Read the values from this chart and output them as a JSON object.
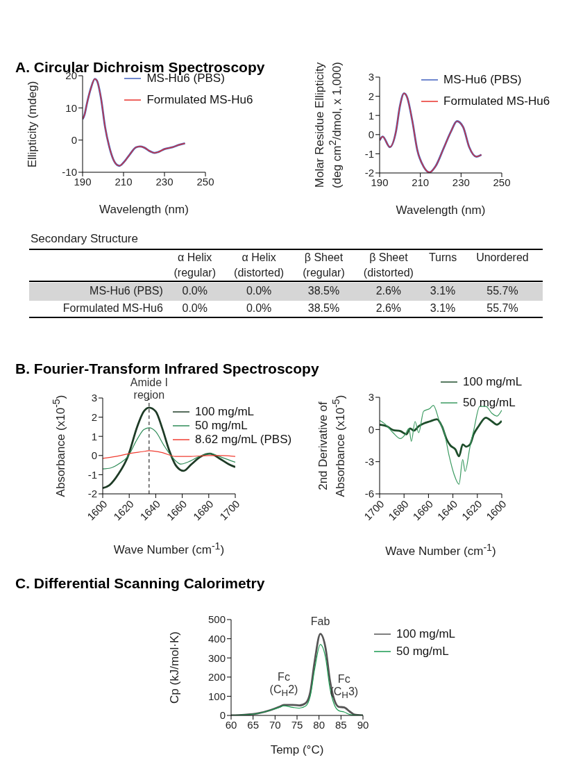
{
  "chart_data": [
    {
      "type": "line",
      "title": "A. Circular Dichroism Spectroscopy",
      "xlabel": "Wavelength (nm)",
      "ylabel": "Ellipticity (mdeg)",
      "xlim": [
        190,
        250
      ],
      "xticks": [
        190,
        210,
        230,
        250
      ],
      "ylim": [
        -10,
        20
      ],
      "yticks": [
        -10,
        0,
        10,
        20
      ],
      "legend": "top right",
      "series": [
        {
          "name": "MS-Hu6 (PBS)",
          "color": "#3f5fbf",
          "x": [
            190,
            191,
            192,
            194,
            196,
            197,
            199,
            201,
            203,
            205,
            207,
            208,
            210,
            213,
            216,
            218,
            220,
            223,
            225,
            227,
            230,
            234,
            237,
            240
          ],
          "values": [
            6.5,
            8,
            11,
            16,
            19,
            18.5,
            13,
            4,
            -2,
            -6,
            -7.8,
            -8,
            -7,
            -4.5,
            -2.3,
            -2,
            -2.3,
            -3.5,
            -4,
            -3.7,
            -2.8,
            -2.2,
            -1.5,
            -1
          ]
        },
        {
          "name": "Formulated MS-Hu6",
          "color": "#e8302a",
          "x": [
            190,
            191,
            192,
            194,
            196,
            197,
            199,
            201,
            203,
            205,
            207,
            208,
            210,
            213,
            216,
            218,
            220,
            223,
            225,
            227,
            230,
            234,
            237,
            240
          ],
          "values": [
            6.5,
            8,
            11,
            16,
            19,
            18.5,
            13,
            4,
            -2,
            -6,
            -7.8,
            -8,
            -7,
            -4.5,
            -2.3,
            -2,
            -2.3,
            -3.5,
            -4,
            -3.7,
            -2.8,
            -2.2,
            -1.5,
            -1
          ]
        }
      ]
    },
    {
      "type": "line",
      "xlabel": "Wavelength (nm)",
      "ylabel": "Molar Residue Ellipticity\n(deg cm$^{2}$/dmol, x 1,000)",
      "xlim": [
        190,
        250
      ],
      "xticks": [
        190,
        210,
        230,
        250
      ],
      "ylim": [
        -2,
        3
      ],
      "yticks": [
        -2,
        -1,
        0,
        1,
        2,
        3
      ],
      "legend": "top right",
      "series": [
        {
          "name": "MS-Hu6 (PBS)",
          "color": "#3f5fbf",
          "x": [
            190,
            191.5,
            195,
            198,
            200,
            202,
            203.5,
            206,
            208.5,
            211.5,
            214.5,
            217.5,
            221.5,
            225,
            228,
            231,
            234,
            237.5,
            240
          ],
          "values": [
            -0.3,
            -0.1,
            -0.65,
            0.15,
            1.5,
            2.15,
            1.95,
            0.75,
            -0.8,
            -1.65,
            -1.97,
            -1.65,
            -0.7,
            0.15,
            0.7,
            0.4,
            -0.65,
            -1.15,
            -1.05
          ]
        },
        {
          "name": "Formulated MS-Hu6",
          "color": "#e8302a",
          "x": [
            190,
            191.5,
            195,
            198,
            200,
            202,
            203.5,
            206,
            208.5,
            211.5,
            214.5,
            217.5,
            221.5,
            225,
            228,
            231,
            234,
            237.5,
            240
          ],
          "values": [
            -0.3,
            -0.1,
            -0.65,
            0.15,
            1.5,
            2.15,
            1.95,
            0.75,
            -0.8,
            -1.65,
            -1.97,
            -1.65,
            -0.7,
            0.15,
            0.7,
            0.4,
            -0.65,
            -1.15,
            -1.05
          ]
        }
      ]
    },
    {
      "type": "other",
      "title": "Secondary Structure",
      "categories": [
        "α Helix\n(regular)",
        "α Helix\n(distorted)",
        "β Sheet\n(regular)",
        "β Sheet\n(distorted)",
        "Turns",
        "Unordered"
      ],
      "y_categories": [
        "MS-Hu6 (PBS)",
        "Formulated MS-Hu6"
      ],
      "cell_labels": [
        [
          "0.0%",
          "0.0%",
          "38.5%",
          "2.6%",
          "3.1%",
          "55.7%"
        ],
        [
          "0.0%",
          "0.0%",
          "38.5%",
          "2.6%",
          "3.1%",
          "55.7%"
        ]
      ]
    },
    {
      "type": "line",
      "title": "B. Fourier-Transform Infrared Spectroscopy",
      "xlabel": "Wave Number (cm$^{-1}$)",
      "ylabel": "Absorbance (x10$^{-5}$)",
      "xlim": [
        1600,
        1700
      ],
      "xticks": [
        1600,
        1620,
        1640,
        1660,
        1680,
        1700
      ],
      "ylim": [
        -2,
        3
      ],
      "yticks": [
        -2,
        -1,
        0,
        1,
        2,
        3
      ],
      "legend": "top right",
      "ref_lines": [
        {
          "axis": "x",
          "value": 1635,
          "color": "#000000",
          "line_style": "dashed"
        }
      ],
      "annotations": [
        {
          "text": "Amide I\nregion",
          "x": 1635,
          "y": 2.5
        }
      ],
      "series": [
        {
          "name": "100 mg/mL",
          "color": "#1e3b26",
          "x": [
            1600,
            1605,
            1612,
            1619,
            1626,
            1631,
            1635,
            1640,
            1645,
            1650,
            1655,
            1661,
            1667,
            1674,
            1681,
            1688,
            1695,
            1700
          ],
          "values": [
            -1.7,
            -1.55,
            -0.95,
            -0.05,
            1.5,
            2.3,
            2.5,
            2.3,
            1.4,
            0.3,
            -0.5,
            -0.8,
            -0.45,
            -0.05,
            0.1,
            -0.15,
            -0.45,
            -0.6
          ]
        },
        {
          "name": "50 mg/mL",
          "color": "#2e8b57",
          "x": [
            1600,
            1606,
            1613,
            1619,
            1626,
            1631,
            1635,
            1640,
            1646,
            1652,
            1659,
            1664,
            1673,
            1681,
            1690,
            1700
          ],
          "values": [
            -0.7,
            -0.65,
            -0.4,
            -0.05,
            0.85,
            1.35,
            1.45,
            1.25,
            0.55,
            -0.05,
            -0.45,
            -0.35,
            -0.05,
            0.1,
            -0.1,
            -0.35
          ]
        },
        {
          "name": "8.62 mg/mL (PBS)",
          "color": "#f03c30",
          "x": [
            1600,
            1610,
            1620,
            1630,
            1635,
            1645,
            1655,
            1665,
            1680,
            1690,
            1700
          ],
          "values": [
            -0.15,
            -0.05,
            0.1,
            0.2,
            0.25,
            0.15,
            -0.05,
            -0.05,
            0,
            0,
            -0.05
          ]
        }
      ]
    },
    {
      "type": "line",
      "xlabel": "Wave Number (cm$^{-1}$)",
      "ylabel": "2nd Derivative of\nAbsorbance (x10$^{-5}$)",
      "xlim": [
        1700,
        1600
      ],
      "xticks": [
        1700,
        1680,
        1660,
        1640,
        1620,
        1600
      ],
      "ylim": [
        -6,
        3
      ],
      "yticks": [
        -6,
        -3,
        0,
        3
      ],
      "legend": "top right",
      "series": [
        {
          "name": "100 mg/mL",
          "color": "#1e4d2b",
          "x": [
            1700,
            1694,
            1689,
            1683,
            1678,
            1675,
            1672,
            1668,
            1664,
            1659,
            1653,
            1649,
            1645,
            1642,
            1638,
            1635,
            1632,
            1629,
            1626,
            1623,
            1619,
            1613,
            1608,
            1604,
            1600
          ],
          "values": [
            0.45,
            0.3,
            -0.05,
            -0.15,
            -0.45,
            0.1,
            -0.1,
            0.3,
            0.55,
            0.75,
            0.95,
            0.3,
            -0.95,
            -1.5,
            -1.85,
            -2.5,
            -1.4,
            -1.6,
            -1.4,
            -0.45,
            0.3,
            1.1,
            0.75,
            0.45,
            0.8
          ]
        },
        {
          "name": "50 mg/mL",
          "color": "#3a9a60",
          "x": [
            1700,
            1696,
            1693,
            1689,
            1683,
            1679,
            1676,
            1674,
            1671,
            1668,
            1664,
            1659,
            1656,
            1651,
            1647,
            1643,
            1639,
            1635,
            1632,
            1630,
            1626,
            1623,
            1618,
            1613,
            1608,
            1604,
            1600
          ],
          "values": [
            0.85,
            0.55,
            0.2,
            -0.3,
            -0.85,
            -0.45,
            0.1,
            -1.1,
            0.75,
            -0.3,
            1.7,
            1.95,
            2.25,
            0.75,
            -0.3,
            -2.5,
            -4.2,
            -5.1,
            -2.8,
            -3.9,
            -1.6,
            -0.1,
            2.15,
            2.15,
            1.5,
            1.25,
            1.8
          ]
        }
      ]
    },
    {
      "type": "line",
      "title": "C. Differential Scanning Calorimetry",
      "xlabel": "Temp (°C)",
      "ylabel": "Cp (kJ/mol·K)",
      "xlim": [
        60,
        90
      ],
      "xticks": [
        60,
        65,
        70,
        75,
        80,
        85,
        90
      ],
      "ylim": [
        0,
        500
      ],
      "yticks": [
        0,
        100,
        200,
        300,
        400,
        500
      ],
      "legend": "right",
      "annotations": [
        {
          "text": "Fab",
          "x": 80.3,
          "y": 425
        },
        {
          "text": "Fc\n(C$_{H}$2)",
          "x": 72,
          "y": 55
        },
        {
          "text": "Fc\n(C$_{H}$3)",
          "x": 85.7,
          "y": 42
        }
      ],
      "series": [
        {
          "name": "100 mg/mL",
          "color": "#555555",
          "x": [
            60,
            63,
            66,
            69,
            71,
            72,
            74,
            75.5,
            77,
            78,
            79,
            80.3,
            81.5,
            82.5,
            83.5,
            84.5,
            85.7,
            87,
            88,
            90
          ],
          "values": [
            0,
            3,
            10,
            28,
            45,
            55,
            55,
            52,
            65,
            120,
            280,
            425,
            350,
            180,
            80,
            45,
            42,
            20,
            5,
            0
          ]
        },
        {
          "name": "50 mg/mL",
          "color": "#1a9a50",
          "x": [
            60,
            63,
            66,
            69,
            71,
            72,
            74,
            75.5,
            77,
            78,
            79,
            80.3,
            81.5,
            82.5,
            83.5,
            84.5,
            85.7,
            87,
            88,
            90
          ],
          "values": [
            0,
            3,
            10,
            28,
            42,
            50,
            42,
            38,
            50,
            100,
            240,
            370,
            300,
            140,
            55,
            25,
            18,
            5,
            2,
            0
          ]
        }
      ]
    }
  ]
}
